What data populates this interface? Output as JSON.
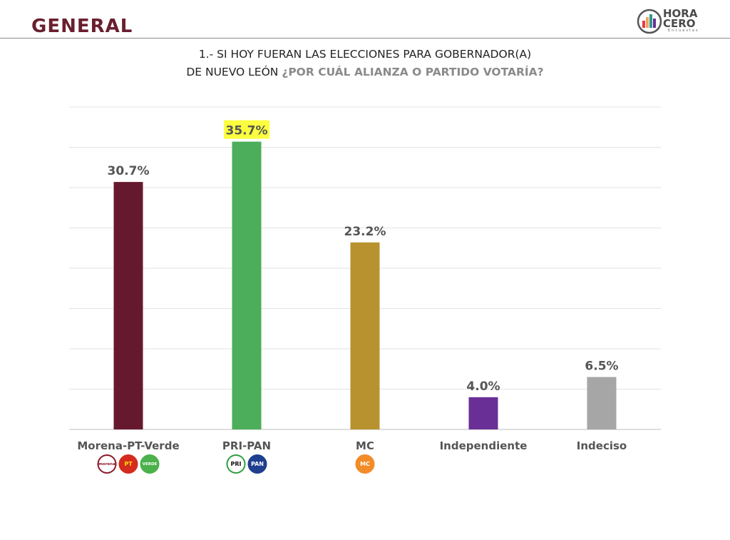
{
  "header": {
    "title": "GENERAL"
  },
  "brand": {
    "line1": "HORA",
    "line2": "CERO",
    "sub": "Encuestas"
  },
  "question": {
    "line1": "1.- SI HOY FUERAN LAS ELECCIONES PARA GOBERNADOR(A)",
    "line2_plain": "DE NUEVO LEÓN ",
    "line2_emphasis": "¿POR CUÁL ALIANZA O PARTIDO VOTARÍA?"
  },
  "chart_data": {
    "type": "bar",
    "categories": [
      "Morena-PT-Verde",
      "PRI-PAN",
      "MC",
      "Independiente",
      "Indeciso"
    ],
    "values": [
      30.7,
      35.7,
      23.2,
      4.0,
      6.5
    ],
    "value_labels": [
      "30.7%",
      "35.7%",
      "23.2%",
      "4.0%",
      "6.5%"
    ],
    "colors": [
      "#66192e",
      "#4cae5a",
      "#b7922e",
      "#6a2f97",
      "#a6a6a6"
    ],
    "highlight_index": 1,
    "highlight_color": "#fbff3f",
    "ylim": [
      0,
      40
    ],
    "grid": true
  },
  "party_logos": [
    [
      {
        "name": "morena-logo",
        "text": "morena",
        "bg": "#ffffff",
        "fg": "#8b1a2a",
        "border": "#8b1a2a"
      },
      {
        "name": "pt-logo",
        "text": "PT",
        "bg": "#d52b1e",
        "fg": "#ffdd00",
        "border": "#d52b1e"
      },
      {
        "name": "verde-logo",
        "text": "VERDE",
        "bg": "#4bb14b",
        "fg": "#ffffff",
        "border": "#4bb14b"
      }
    ],
    [
      {
        "name": "pri-logo",
        "text": "PRI",
        "bg": "#ffffff",
        "fg": "#111111",
        "border": "#2f9e3e"
      },
      {
        "name": "pan-logo",
        "text": "PAN",
        "bg": "#1f3f8f",
        "fg": "#ffffff",
        "border": "#1f3f8f"
      }
    ],
    [
      {
        "name": "mc-logo",
        "text": "MC",
        "bg": "#f28c28",
        "fg": "#ffffff",
        "border": "#f28c28"
      }
    ],
    [],
    []
  ]
}
